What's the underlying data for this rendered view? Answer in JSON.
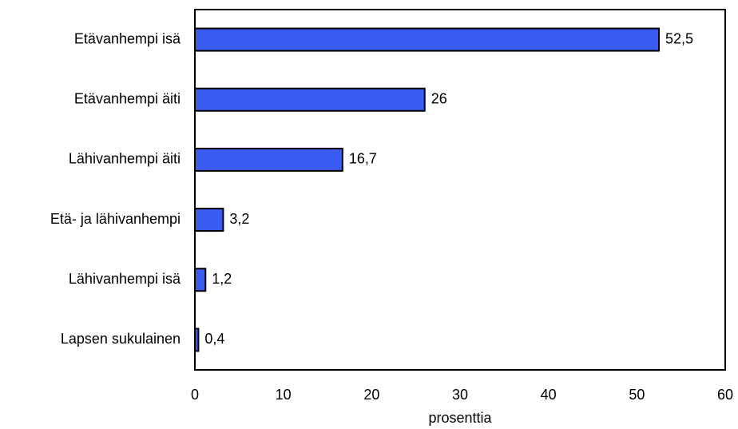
{
  "chart_data": {
    "type": "bar",
    "orientation": "horizontal",
    "categories": [
      "Etävanhempi isä",
      "Etävanhempi äiti",
      "Lähivanhempi äiti",
      "Etä- ja lähivanhempi",
      "Lähivanhempi isä",
      "Lapsen sukulainen"
    ],
    "values": [
      52.5,
      26,
      16.7,
      3.2,
      1.2,
      0.4
    ],
    "value_labels": [
      "52,5",
      "26",
      "16,7",
      "3,2",
      "1,2",
      "0,4"
    ],
    "xlabel": "prosenttia",
    "ylabel": "",
    "xlim": [
      0,
      60
    ],
    "x_ticks": [
      0,
      10,
      20,
      30,
      40,
      50,
      60
    ],
    "grid": false,
    "colors": {
      "bar_fill": "#3a5cf0",
      "bar_stroke": "#000000",
      "axis": "#000000"
    }
  }
}
